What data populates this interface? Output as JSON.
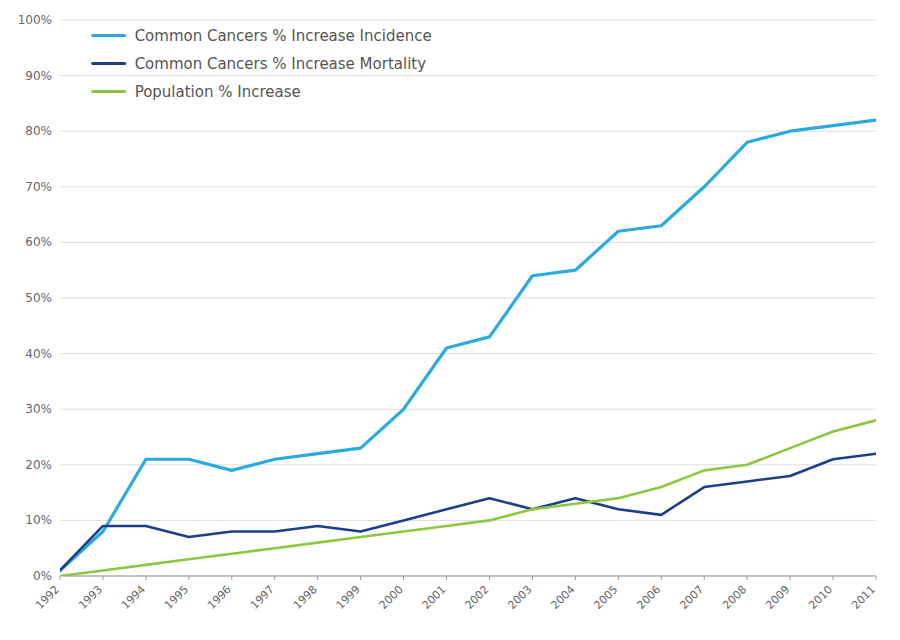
{
  "chart_data": {
    "type": "line",
    "x": [
      1992,
      1993,
      1994,
      1995,
      1996,
      1997,
      1998,
      1999,
      2000,
      2001,
      2002,
      2003,
      2004,
      2005,
      2006,
      2007,
      2008,
      2009,
      2010,
      2011
    ],
    "series": [
      {
        "name": "Common Cancers % Increase Incidence",
        "color": "#29ABE2",
        "values": [
          1,
          8,
          21,
          21,
          19,
          21,
          22,
          23,
          30,
          41,
          43,
          54,
          55,
          62,
          63,
          70,
          78,
          80,
          81,
          82
        ]
      },
      {
        "name": "Common Cancers % Increase Mortality",
        "color": "#1B3F8B",
        "values": [
          1,
          9,
          9,
          7,
          8,
          8,
          9,
          8,
          10,
          12,
          14,
          12,
          14,
          12,
          11,
          16,
          17,
          18,
          21,
          22
        ]
      },
      {
        "name": "Population % Increase",
        "color": "#8DC63F",
        "values": [
          0,
          1,
          2,
          3,
          4,
          5,
          6,
          7,
          8,
          9,
          10,
          12,
          13,
          14,
          16,
          19,
          20,
          23,
          26,
          28
        ]
      }
    ],
    "xlim": [
      1992,
      2011
    ],
    "xticks": [
      1992,
      1993,
      1994,
      1995,
      1996,
      1997,
      1998,
      1999,
      2000,
      2001,
      2002,
      2003,
      2004,
      2005,
      2006,
      2007,
      2008,
      2009,
      2010,
      2011
    ],
    "ylim": [
      0,
      100
    ],
    "yticks": [
      {
        "value": 0,
        "label": "0%"
      },
      {
        "value": 10,
        "label": "10%"
      },
      {
        "value": 20,
        "label": "20%"
      },
      {
        "value": 30,
        "label": "30%"
      },
      {
        "value": 40,
        "label": "40%"
      },
      {
        "value": 50,
        "label": "50%"
      },
      {
        "value": 60,
        "label": "60%"
      },
      {
        "value": 70,
        "label": "70%"
      },
      {
        "value": 80,
        "label": "80%"
      },
      {
        "value": 90,
        "label": "90%"
      },
      {
        "value": 100,
        "label": "100%"
      }
    ],
    "grid": true,
    "legend": "upper left"
  }
}
